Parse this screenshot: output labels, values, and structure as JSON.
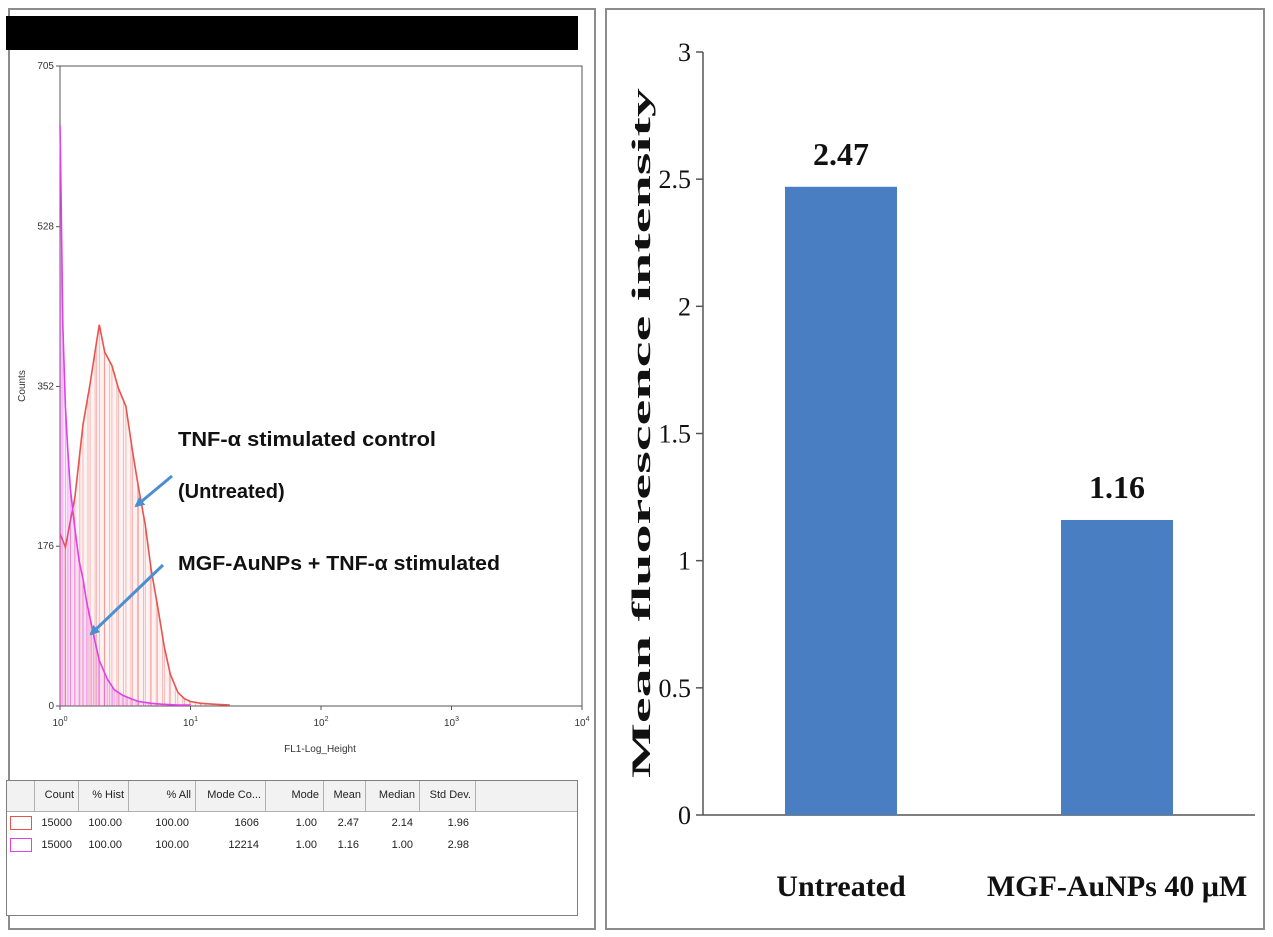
{
  "histogram": {
    "y_axis_label": "Counts",
    "x_axis_label": "FL1-Log_Height",
    "y_ticks": [
      "705",
      "528",
      "352",
      "176",
      "0"
    ],
    "x_ticks": [
      {
        "base": "10",
        "exp": "0"
      },
      {
        "base": "10",
        "exp": "1"
      },
      {
        "base": "10",
        "exp": "2"
      },
      {
        "base": "10",
        "exp": "3"
      },
      {
        "base": "10",
        "exp": "4"
      }
    ],
    "annotation_control_line1": "TNF-α stimulated control",
    "annotation_control_line2": "(Untreated)",
    "annotation_treated": "MGF-AuNPs + TNF-α stimulated",
    "colors": {
      "control": "#e8534e",
      "treated": "#e040e8",
      "arrow": "#4a8fd0"
    }
  },
  "stats_table": {
    "headers": [
      "Count",
      "% Hist",
      "% All",
      "Mode Co...",
      "Mode",
      "Mean",
      "Median",
      "Std Dev."
    ],
    "rows": [
      {
        "color": "#e8534e",
        "values": [
          "15000",
          "100.00",
          "100.00",
          "1606",
          "1.00",
          "2.47",
          "2.14",
          "1.96"
        ]
      },
      {
        "color": "#e040e8",
        "values": [
          "15000",
          "100.00",
          "100.00",
          "12214",
          "1.00",
          "1.16",
          "1.00",
          "2.98"
        ]
      }
    ]
  },
  "chart_data": [
    {
      "type": "area",
      "title": "",
      "xlabel": "FL1-Log_Height",
      "ylabel": "Counts",
      "x_scale": "log",
      "xlim": [
        1,
        10000
      ],
      "ylim": [
        0,
        705
      ],
      "yticks": [
        0,
        176,
        352,
        528,
        705
      ],
      "series": [
        {
          "name": "TNF-α stimulated control (Untreated)",
          "x": [
            1,
            1.1,
            1.3,
            1.5,
            1.7,
            1.9,
            2.0,
            2.2,
            2.5,
            2.8,
            3.2,
            3.6,
            4.0,
            4.5,
            5.0,
            5.6,
            6.3,
            7.0,
            8.0,
            9.0,
            10,
            12,
            15,
            20
          ],
          "y": [
            190,
            175,
            230,
            310,
            355,
            400,
            420,
            390,
            375,
            350,
            330,
            280,
            240,
            200,
            150,
            110,
            65,
            35,
            15,
            8,
            5,
            3,
            2,
            1
          ]
        },
        {
          "name": "MGF-AuNPs + TNF-α stimulated",
          "x": [
            1,
            1.02,
            1.05,
            1.1,
            1.15,
            1.2,
            1.3,
            1.4,
            1.5,
            1.6,
            1.8,
            2.0,
            2.3,
            2.6,
            3.0,
            3.5,
            4.0,
            5.0,
            6.0,
            8.0,
            10
          ],
          "y": [
            640,
            560,
            420,
            330,
            280,
            240,
            195,
            160,
            140,
            115,
            80,
            50,
            30,
            18,
            12,
            8,
            5,
            3,
            2,
            1,
            1
          ]
        }
      ]
    },
    {
      "type": "bar",
      "title": "",
      "ylabel": "Mean fluorescence intensity",
      "xlabel": "",
      "categories": [
        "Untreated",
        "MGF-AuNPs 40 μM"
      ],
      "values": [
        2.47,
        1.16
      ],
      "data_labels": [
        "2.47",
        "1.16"
      ],
      "ylim": [
        0,
        3
      ],
      "yticks": [
        "0",
        "0.5",
        "1",
        "1.5",
        "2",
        "2.5",
        "3"
      ],
      "bar_color": "#4a7ec2",
      "grid": false
    }
  ]
}
